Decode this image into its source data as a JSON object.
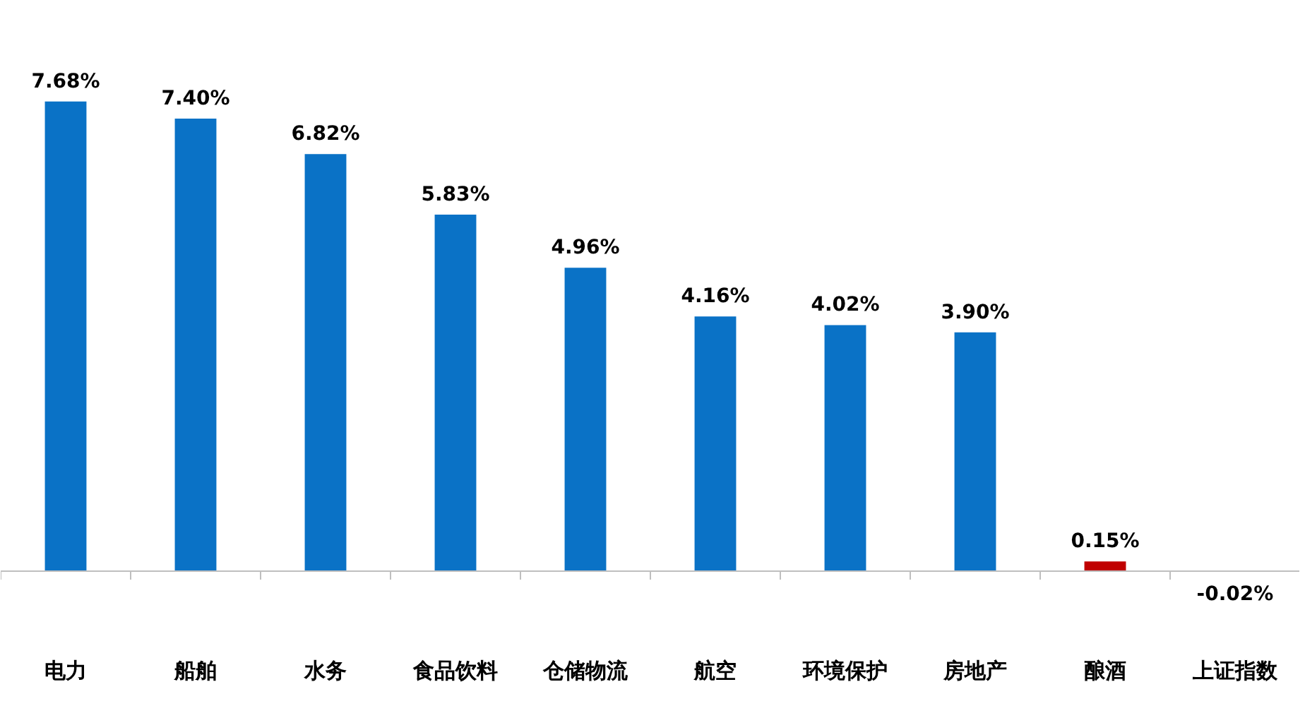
{
  "chart_data": {
    "type": "bar",
    "categories": [
      "电力",
      "船舶",
      "水务",
      "食品饮料",
      "仓储物流",
      "航空",
      "环境保护",
      "房地产",
      "酿酒",
      "上证指数"
    ],
    "values": [
      7.68,
      7.4,
      6.82,
      5.83,
      4.96,
      4.16,
      4.02,
      3.9,
      0.15,
      -0.02
    ],
    "colors": [
      "#0a72c6",
      "#0a72c6",
      "#0a72c6",
      "#0a72c6",
      "#0a72c6",
      "#0a72c6",
      "#0a72c6",
      "#0a72c6",
      "#c00000",
      "#c00000"
    ],
    "value_labels": [
      "7.68%",
      "7.40%",
      "6.82%",
      "5.83%",
      "4.96%",
      "4.16%",
      "4.02%",
      "3.90%",
      "0.15%",
      "-0.02%"
    ],
    "data_labels": false
  }
}
